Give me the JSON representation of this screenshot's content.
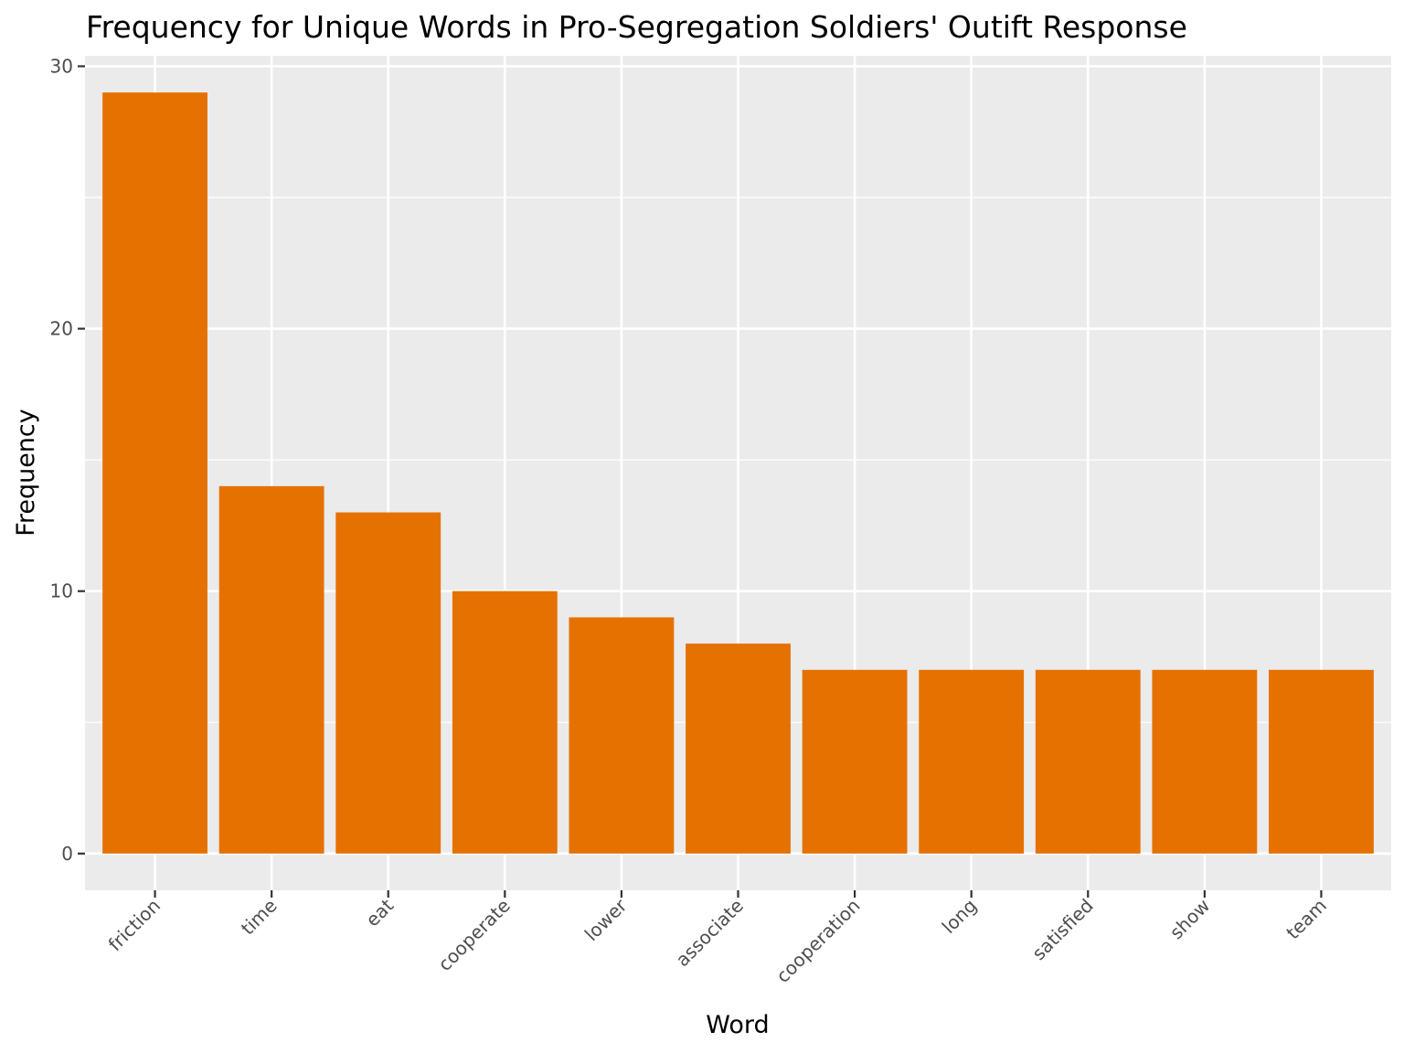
{
  "chart_data": {
    "type": "bar",
    "title": "Frequency for Unique Words in Pro-Segregation Soldiers' Outift Response",
    "xlabel": "Word",
    "ylabel": "Frequency",
    "categories": [
      "friction",
      "time",
      "eat",
      "cooperate",
      "lower",
      "associate",
      "cooperation",
      "long",
      "satisfied",
      "show",
      "team"
    ],
    "values": [
      29,
      14,
      13,
      10,
      9,
      8,
      7,
      7,
      7,
      7,
      7
    ],
    "ylim": [
      -1.4,
      30.4
    ],
    "yticks": [
      0,
      10,
      20,
      30
    ],
    "grid": true,
    "legend": "none",
    "colors": {
      "bar": "#E57200",
      "panel": "#EBEBEB",
      "grid": "#FFFFFF",
      "tick": "#333333"
    }
  }
}
